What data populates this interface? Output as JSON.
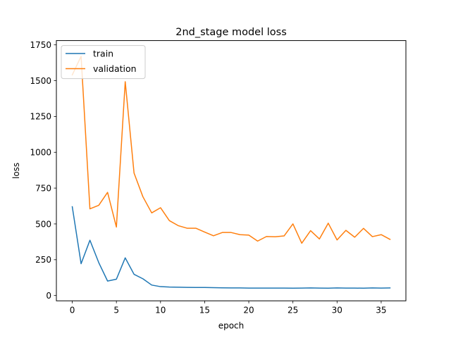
{
  "chart_data": {
    "type": "line",
    "title": "2nd_stage model loss",
    "xlabel": "epoch",
    "ylabel": "loss",
    "xlim": [
      -1.8,
      37.8
    ],
    "ylim": [
      -37,
      1780
    ],
    "xticks": [
      0,
      5,
      10,
      15,
      20,
      25,
      30,
      35
    ],
    "yticks": [
      0,
      250,
      500,
      750,
      1000,
      1250,
      1500,
      1750
    ],
    "grid": false,
    "legend_position": "upper-left",
    "x": [
      0,
      1,
      2,
      3,
      4,
      5,
      6,
      7,
      8,
      9,
      10,
      11,
      12,
      13,
      14,
      15,
      16,
      17,
      18,
      19,
      20,
      21,
      22,
      23,
      24,
      25,
      26,
      27,
      28,
      29,
      30,
      31,
      32,
      33,
      34,
      35,
      36
    ],
    "series": [
      {
        "name": "train",
        "color": "#1f77b4",
        "values": [
          620,
          222,
          386,
          230,
          101,
          114,
          263,
          148,
          117,
          73,
          62,
          59,
          58,
          57,
          56,
          56,
          55,
          54,
          53,
          53,
          52,
          52,
          52,
          52,
          52,
          51,
          52,
          53,
          52,
          51,
          53,
          52,
          52,
          51,
          53,
          52,
          53
        ]
      },
      {
        "name": "validation",
        "color": "#ff7f0e",
        "values": [
          1540,
          1670,
          605,
          630,
          720,
          478,
          1493,
          855,
          690,
          577,
          613,
          523,
          488,
          470,
          470,
          443,
          417,
          440,
          440,
          425,
          422,
          380,
          412,
          410,
          416,
          500,
          365,
          453,
          395,
          505,
          388,
          455,
          407,
          469,
          411,
          425,
          392
        ]
      }
    ]
  }
}
